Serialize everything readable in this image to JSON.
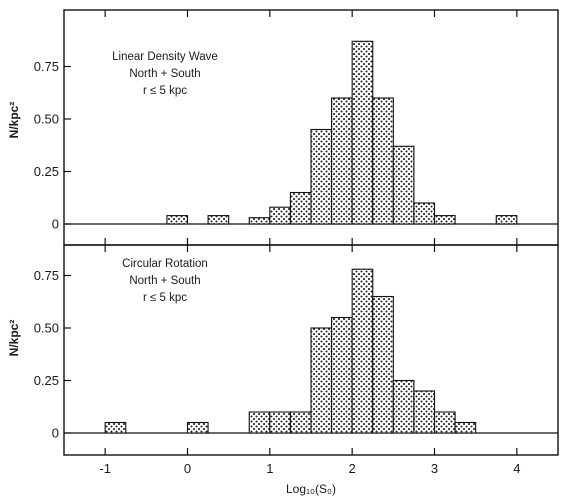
{
  "chart_data": [
    {
      "type": "bar",
      "title": "",
      "annotation": [
        "Linear Density Wave",
        "North + South",
        "r ≤ 5 kpc"
      ],
      "ylabel": "N/kpc²",
      "xlabel": "",
      "xlim": [
        -1.5,
        4.5
      ],
      "ylim": [
        0,
        0.95
      ],
      "yticks": [
        0,
        0.25,
        0.5,
        0.75
      ],
      "ytick_labels": [
        "0",
        "0.25",
        "0.50",
        "0.75"
      ],
      "bin_width": 0.25,
      "bin_starts": [
        0.75,
        1.0,
        1.25,
        1.5,
        1.75,
        2.0,
        2.25,
        2.5,
        2.75,
        3.0,
        3.25
      ],
      "values": [
        0.03,
        0.08,
        0.15,
        0.45,
        0.6,
        0.87,
        0.6,
        0.37,
        0.1,
        0.04,
        0.0
      ],
      "isolated_bins": [
        {
          "start": -0.25,
          "value": 0.04
        },
        {
          "start": 0.25,
          "value": 0.04
        },
        {
          "start": 3.75,
          "value": 0.04
        }
      ]
    },
    {
      "type": "bar",
      "title": "",
      "annotation": [
        "Circular Rotation",
        "North + South",
        "r ≤ 5 kpc"
      ],
      "ylabel": "N/kpc²",
      "xlabel": "Log₁₀(S₀)",
      "xlim": [
        -1.5,
        4.5
      ],
      "ylim": [
        0,
        0.95
      ],
      "xticks": [
        -1,
        0,
        1,
        2,
        3,
        4
      ],
      "xtick_labels": [
        "-1",
        "0",
        "1",
        "2",
        "3",
        "4"
      ],
      "yticks": [
        0,
        0.25,
        0.5,
        0.75
      ],
      "ytick_labels": [
        "0",
        "0.25",
        "0.50",
        "0.75"
      ],
      "bin_width": 0.25,
      "bin_starts": [
        0.75,
        1.0,
        1.25,
        1.5,
        1.75,
        2.0,
        2.25,
        2.5,
        2.75,
        3.0,
        3.25
      ],
      "values": [
        0.1,
        0.1,
        0.1,
        0.5,
        0.55,
        0.78,
        0.65,
        0.25,
        0.2,
        0.1,
        0.05
      ],
      "isolated_bins": [
        {
          "start": -1.0,
          "value": 0.05
        },
        {
          "start": 0.0,
          "value": 0.05
        }
      ]
    }
  ]
}
